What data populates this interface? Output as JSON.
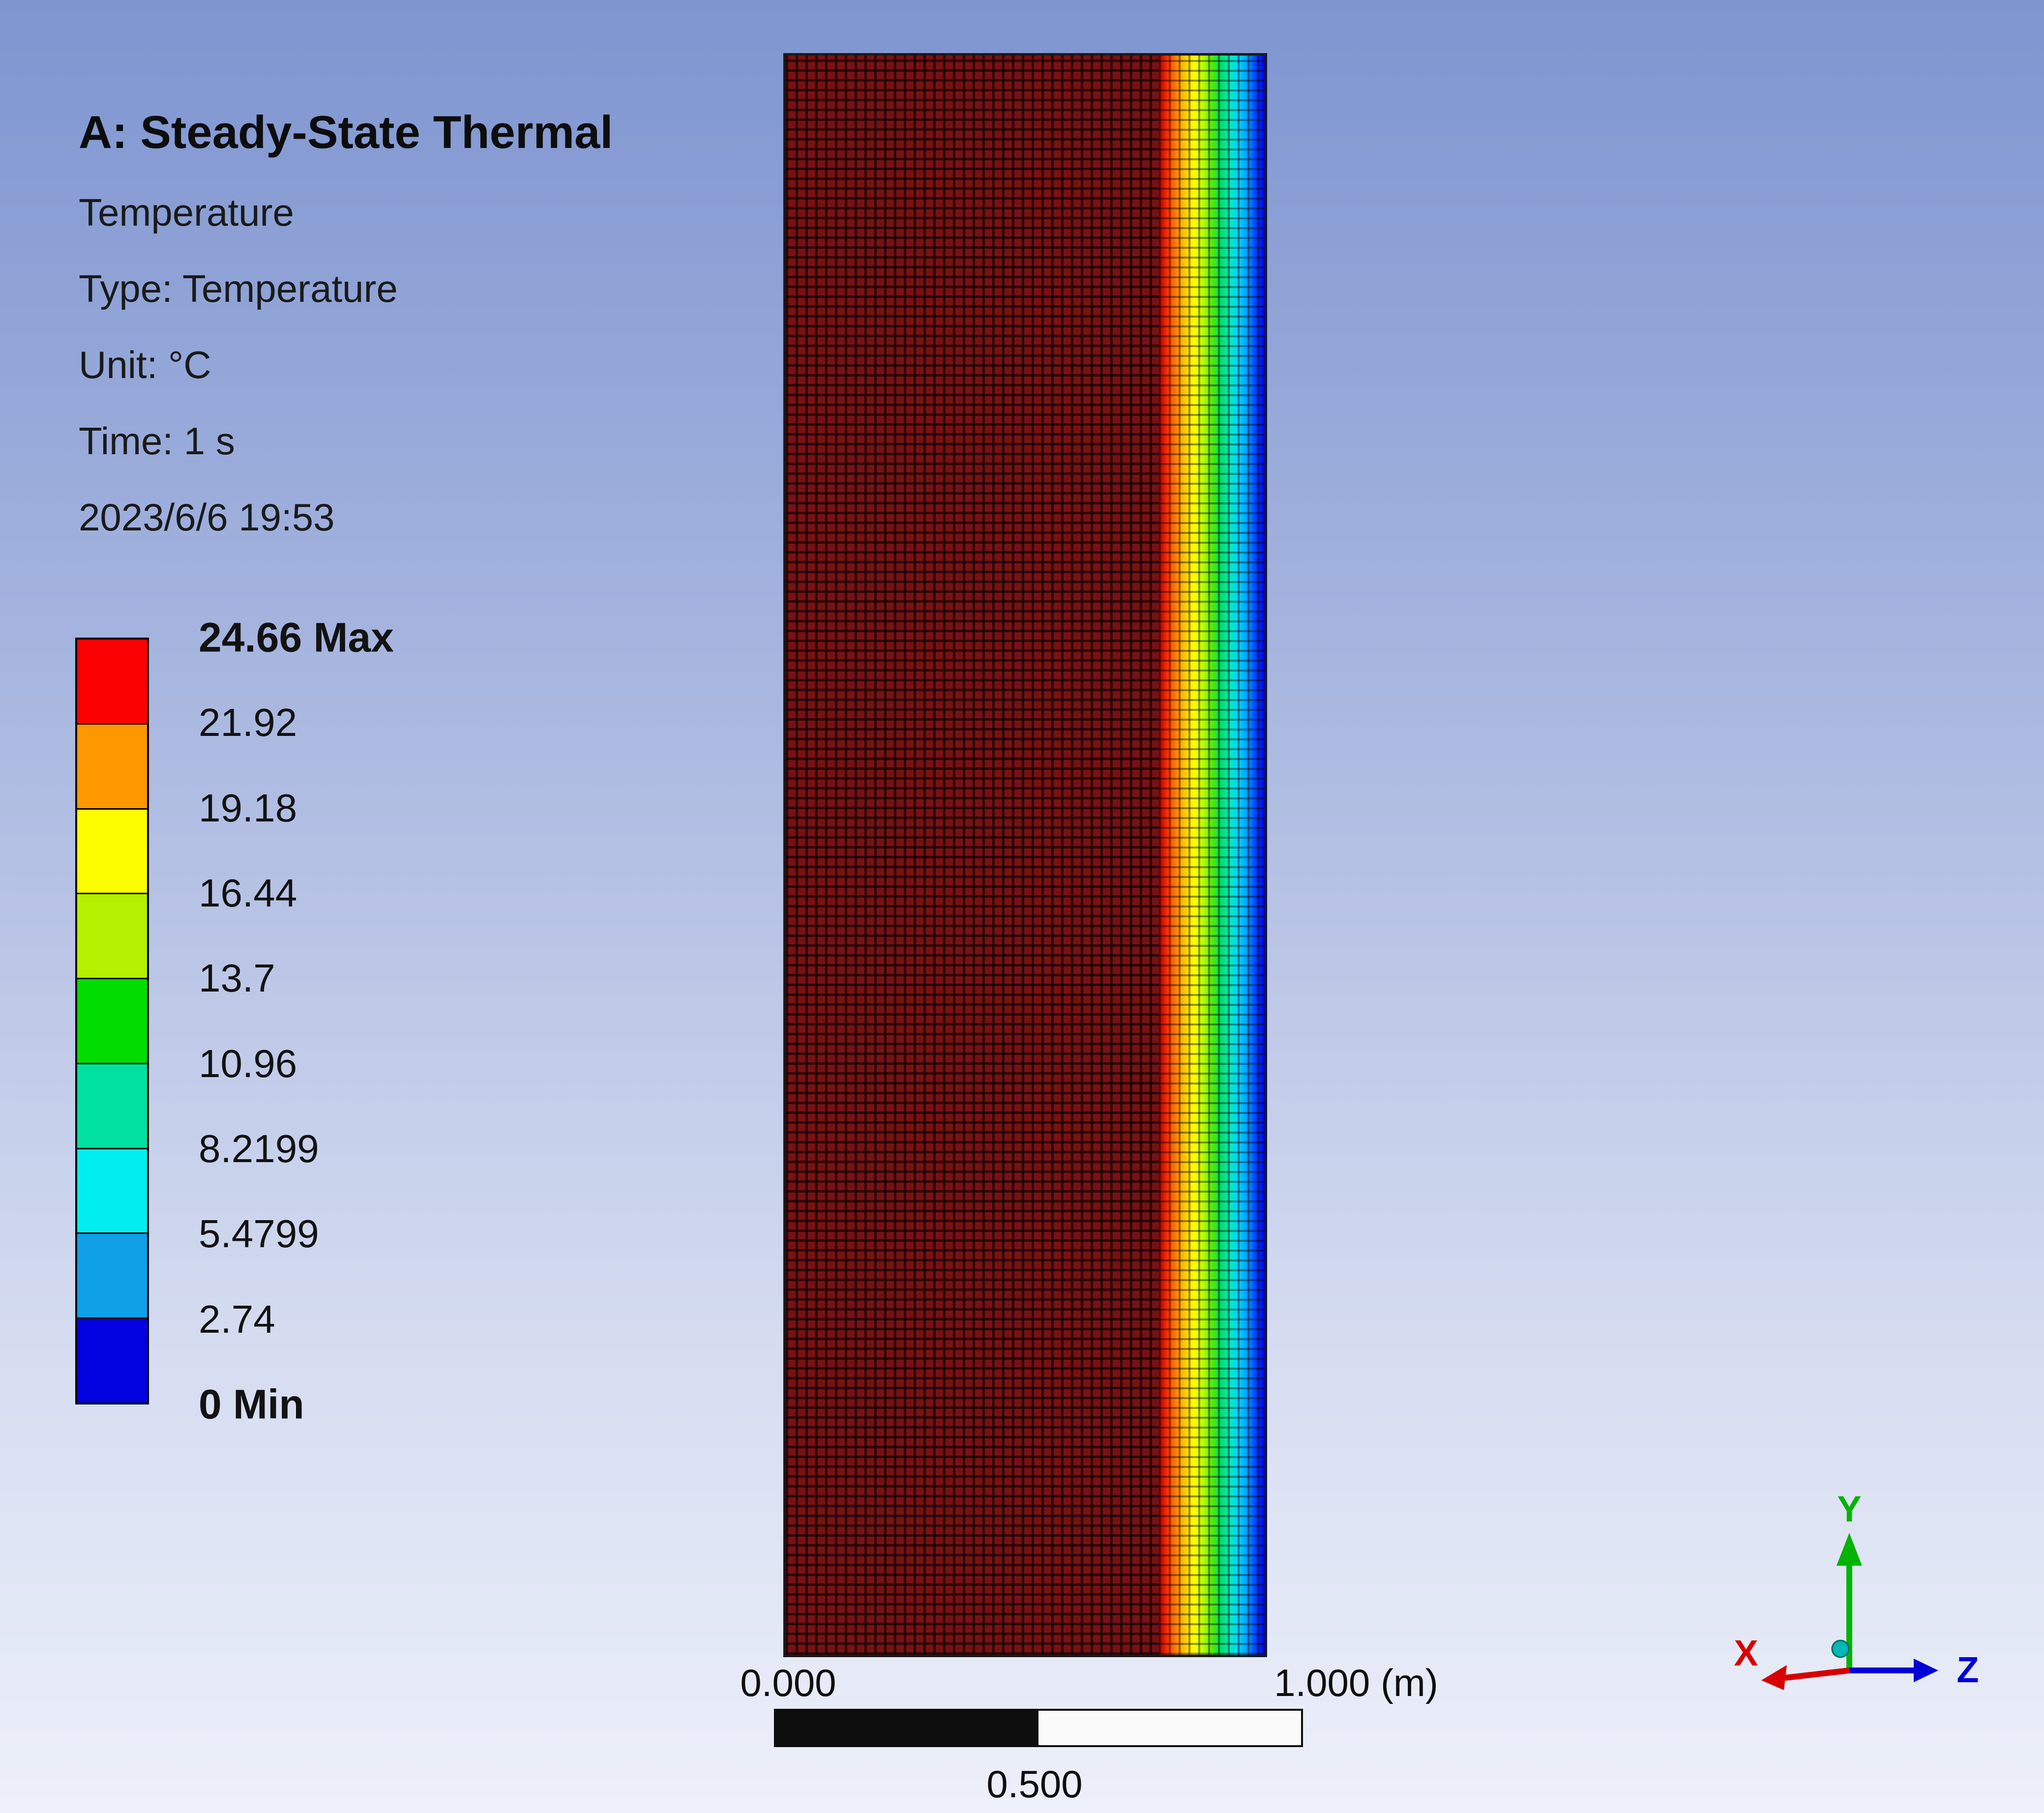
{
  "chart_data": {
    "type": "heatmap",
    "title": "A: Steady-State Thermal",
    "info_lines": [
      "Temperature",
      "Type: Temperature",
      "Unit: °C",
      "Time: 1 s",
      "2023/6/6 19:53"
    ],
    "legend": {
      "labels": [
        "24.66 Max",
        "21.92",
        "19.18",
        "16.44",
        "13.7",
        "10.96",
        "8.2199",
        "5.4799",
        "2.74",
        "0 Min"
      ],
      "values": [
        24.66,
        21.92,
        19.18,
        16.44,
        13.7,
        10.96,
        8.2199,
        5.4799,
        2.74,
        0
      ],
      "max": 24.66,
      "min": 0,
      "band_colors": [
        "#fb0000",
        "#ff9800",
        "#fdfd00",
        "#b4f000",
        "#00dc00",
        "#00e0a0",
        "#00eef0",
        "#0fa0e8",
        "#0202e0"
      ]
    },
    "field": {
      "shape": "tall rectangular plate with structured quad mesh, hot (max) over most of the width, thin cooling boundary layer at right edge",
      "hot_color": "#781212",
      "gradient_band_colors": [
        "#aa0000",
        "#ff3300",
        "#ff8800",
        "#ffcc00",
        "#ffff00",
        "#bbff00",
        "#55ee00",
        "#00dd66",
        "#00eebb",
        "#00d5ff",
        "#00a0ff",
        "#0040ff",
        "#0000dd"
      ]
    },
    "scale_bar": {
      "left_label": "0.000",
      "mid_label": "0.500",
      "right_label": "1.000 (m)"
    },
    "triad": {
      "x": {
        "label": "X",
        "color": "#d80000"
      },
      "y": {
        "label": "Y",
        "color": "#00b400"
      },
      "z": {
        "label": "Z",
        "color": "#0000d8"
      }
    }
  }
}
